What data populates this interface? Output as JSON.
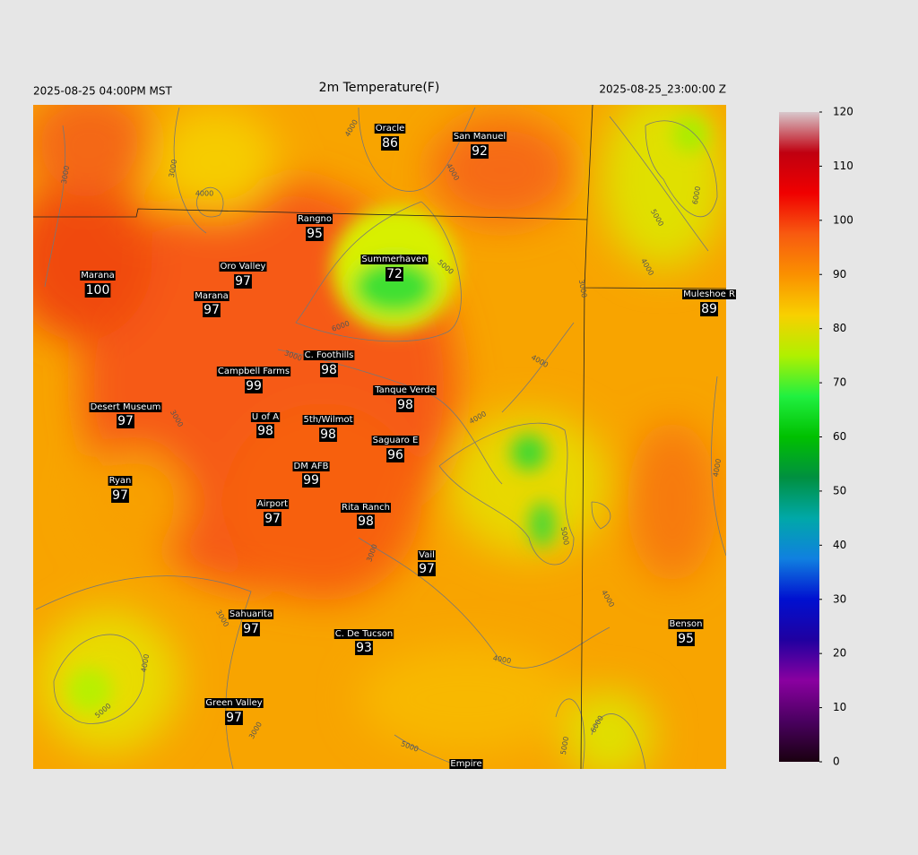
{
  "header": {
    "left": "2025-08-25 04:00PM MST",
    "title": "2m Temperature(F)",
    "right": "2025-08-25_23:00:00 Z"
  },
  "stations": [
    {
      "name": "Oracle",
      "temp": 86
    },
    {
      "name": "San Manuel",
      "temp": 92
    },
    {
      "name": "Rangno",
      "temp": 95
    },
    {
      "name": "Summerhaven",
      "temp": 72
    },
    {
      "name": "Marana",
      "temp": 100
    },
    {
      "name": "Oro Valley",
      "temp": 97
    },
    {
      "name": "Marana",
      "temp": 97
    },
    {
      "name": "Muleshoe R",
      "temp": 89
    },
    {
      "name": "C. Foothills",
      "temp": 98
    },
    {
      "name": "Campbell Farms",
      "temp": 99
    },
    {
      "name": "Tanque Verde",
      "temp": 98
    },
    {
      "name": "Desert Museum",
      "temp": 97
    },
    {
      "name": "U of A",
      "temp": 98
    },
    {
      "name": "5th/Wilmot",
      "temp": 98
    },
    {
      "name": "Saguaro E",
      "temp": 96
    },
    {
      "name": "DM AFB",
      "temp": 99
    },
    {
      "name": "Ryan",
      "temp": 97
    },
    {
      "name": "Airport",
      "temp": 97
    },
    {
      "name": "Rita Ranch",
      "temp": 98
    },
    {
      "name": "Vail",
      "temp": 97
    },
    {
      "name": "Sahuarita",
      "temp": 97
    },
    {
      "name": "C. De Tucson",
      "temp": 93
    },
    {
      "name": "Benson",
      "temp": 95
    },
    {
      "name": "Green Valley",
      "temp": 97
    },
    {
      "name": "Empire"
    }
  ],
  "contour_labels": [
    3000,
    3000,
    4000,
    4000,
    4000,
    5000,
    6000,
    4000,
    3000,
    5000,
    6000,
    3000,
    4000,
    4000,
    3000,
    4000,
    5000,
    4000,
    3000,
    3000,
    4000,
    5000,
    4000,
    3000,
    5000,
    5000,
    6000
  ],
  "colorbar": {
    "lim": [
      0,
      120
    ],
    "ticks": [
      0,
      10,
      20,
      30,
      40,
      50,
      60,
      70,
      80,
      90,
      100,
      110,
      120
    ],
    "colors": [
      "#1a0010",
      "#4a0060",
      "#8a00a0",
      "#2000a0",
      "#0010d0",
      "#1080e0",
      "#00a8a8",
      "#009040",
      "#00c000",
      "#20f040",
      "#b0f000",
      "#f8d000",
      "#fa9000",
      "#f85a10",
      "#f00000",
      "#c00010",
      "#d8c8cc"
    ]
  }
}
